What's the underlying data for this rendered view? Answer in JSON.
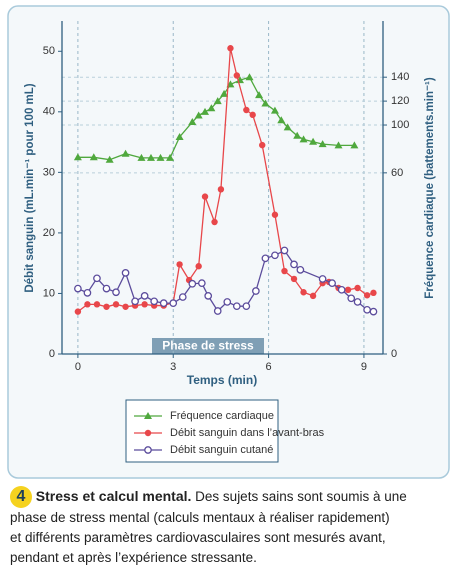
{
  "chart_data": {
    "type": "line",
    "xlabel": "Temps (min)",
    "ylabel": "Débit sanguin (mL.min⁻¹ pour 100 mL)",
    "y2label": "Fréquence cardiaque (battements.min⁻¹)",
    "annotation": "Phase de stress",
    "xlim": [
      -0.5,
      9.6
    ],
    "xticks": [
      0,
      3,
      6,
      9
    ],
    "ylim": [
      0,
      55
    ],
    "yticks": [
      0,
      10,
      20,
      30,
      40,
      50
    ],
    "y2lim": [
      0,
      187
    ],
    "y2ticks": [
      0,
      60,
      100,
      120,
      140
    ],
    "grid": true,
    "series": [
      {
        "name": "Fréquence cardiaque",
        "color": "#4fa83d",
        "marker": "triangle",
        "axis": "y2",
        "x": [
          0,
          0.5,
          1,
          1.5,
          2,
          2.3,
          2.6,
          2.9,
          3.2,
          3.6,
          3.8,
          4.0,
          4.2,
          4.4,
          4.6,
          4.8,
          5.1,
          5.4,
          5.7,
          5.9,
          6.2,
          6.4,
          6.6,
          6.9,
          7.1,
          7.4,
          7.7,
          8.2,
          8.7
        ],
        "values": [
          73,
          73,
          71,
          76,
          72.5,
          72.5,
          72.5,
          72.5,
          90,
          102.5,
          108,
          111,
          114,
          120,
          126,
          134,
          137.5,
          140,
          125,
          118,
          112,
          104,
          98,
          91,
          88,
          86,
          84,
          83,
          83
        ]
      },
      {
        "name": "Débit sanguin dans l’avant-bras",
        "color": "#e8474a",
        "marker": "dot",
        "axis": "y",
        "x": [
          0,
          0.3,
          0.6,
          0.9,
          1.2,
          1.5,
          1.8,
          2.1,
          2.4,
          2.7,
          3.0,
          3.2,
          3.5,
          3.8,
          4.0,
          4.3,
          4.5,
          4.8,
          5.0,
          5.3,
          5.5,
          5.8,
          6.2,
          6.5,
          6.8,
          7.1,
          7.4,
          7.7,
          7.9,
          8.2,
          8.5,
          8.8,
          9.1,
          9.3
        ],
        "values": [
          7,
          8.2,
          8.2,
          7.8,
          8.2,
          7.8,
          8,
          8.2,
          8,
          8,
          8.5,
          14.8,
          12.2,
          14.5,
          26,
          21.8,
          27.2,
          50.5,
          46,
          40.3,
          39.5,
          34.5,
          23,
          13.7,
          12.4,
          10.2,
          9.6,
          11.7,
          11.9,
          10.9,
          10.6,
          10.9,
          9.7,
          10.1
        ]
      },
      {
        "name": "Débit sanguin cutané",
        "color": "#5b4c9c",
        "marker": "circle",
        "axis": "y",
        "x": [
          0,
          0.3,
          0.6,
          0.9,
          1.2,
          1.5,
          1.8,
          2.1,
          2.4,
          2.7,
          3.0,
          3.3,
          3.6,
          3.9,
          4.1,
          4.4,
          4.7,
          5.0,
          5.3,
          5.6,
          5.9,
          6.2,
          6.5,
          6.8,
          7.0,
          7.7,
          8.0,
          8.3,
          8.6,
          8.8,
          9.1,
          9.3
        ],
        "values": [
          10.8,
          10.1,
          12.5,
          10.8,
          10.2,
          13.4,
          8.7,
          9.6,
          8.7,
          8.4,
          8.4,
          9.4,
          11.6,
          11.7,
          9.6,
          7.1,
          8.6,
          7.9,
          7.9,
          10.4,
          15.8,
          16.3,
          17.1,
          14.8,
          13.9,
          12.4,
          11.7,
          10.6,
          9.2,
          8.6,
          7.3,
          7
        ]
      }
    ]
  },
  "caption": {
    "number": "4",
    "title": "Stress et calcul mental.",
    "lines": [
      "Des sujets sains sont soumis à une",
      "phase de stress mental (calculs mentaux à réaliser rapidement)",
      "et différents paramètres cardiovasculaires sont mesurés avant,",
      "pendant et après l’expérience stressante."
    ]
  }
}
